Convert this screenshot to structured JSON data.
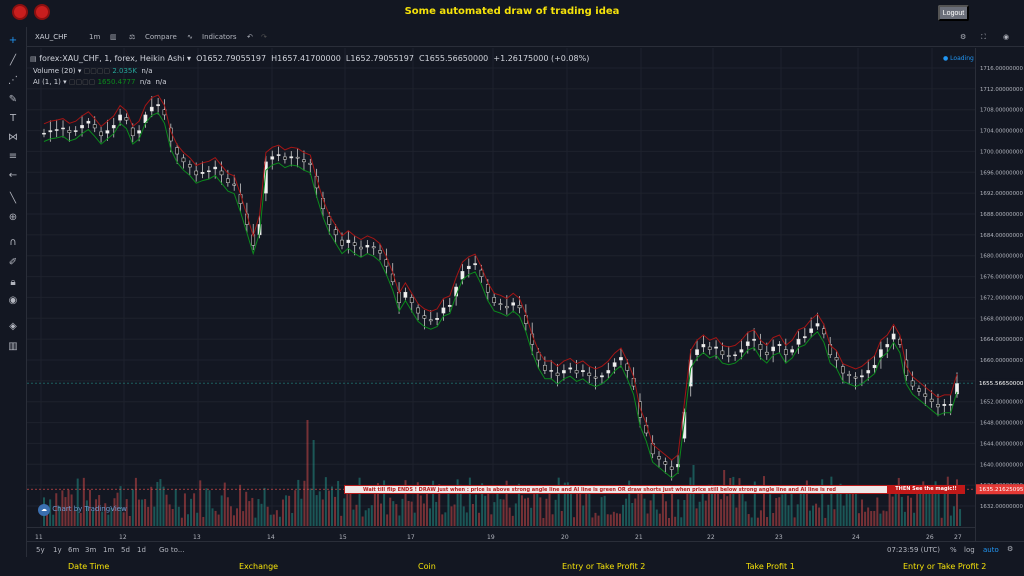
{
  "header": {
    "title": "Some automated draw of trading idea",
    "logout_label": "Logout"
  },
  "toolbar": {
    "symbol": "XAU_CHF",
    "interval": "1m",
    "compare_label": "Compare",
    "indicators_label": "Indicators"
  },
  "legend": {
    "main_prefix": "forex:XAU_CHF, 1, forex, Heikin Ashi",
    "open": "O1652.79055197",
    "high": "H1657.41700000",
    "low": "L1652.79055197",
    "close": "C1655.56650000",
    "change": "+1.26175000 (+0.08%)",
    "volume_label": "Volume (20)",
    "volume_value": "2.035K",
    "volume_na": "n/a",
    "ai_label": "AI (1, 1)",
    "ai_value": "1650.4777",
    "ai_na1": "n/a",
    "ai_na2": "n/a",
    "loading": "Loading"
  },
  "price_axis": {
    "labels": [
      "1716.00000000",
      "1712.00000000",
      "1708.00000000",
      "1704.00000000",
      "1700.00000000",
      "1696.00000000",
      "1692.00000000",
      "1688.00000000",
      "1684.00000000",
      "1680.00000000",
      "1676.00000000",
      "1672.00000000",
      "1668.00000000",
      "1664.00000000",
      "1660.00000000",
      "1656.00000000",
      "1652.00000000",
      "1648.00000000",
      "1644.00000000",
      "1640.00000000",
      "1636.00000000",
      "1632.00000000"
    ],
    "current_price": "1655.56650000",
    "red_price": "1635.21625095"
  },
  "time_axis": {
    "labels": [
      "11",
      "12",
      "13",
      "14",
      "15",
      "17",
      "19",
      "20",
      "21",
      "22",
      "23",
      "24",
      "26",
      "27"
    ]
  },
  "banner": {
    "text": "Wait till flip ENDS  !  DRAW just when : price is above strong angle line and AI line is green         OR        draw shorts just when price still below strong angle line and AI line is red",
    "end": "THEN See the magic!!"
  },
  "watermark": "Chart by TradingView",
  "bottombar": {
    "ranges": [
      "5y",
      "1y",
      "6m",
      "3m",
      "1m",
      "5d",
      "1d"
    ],
    "goto": "Go to...",
    "time": "07:23:59 (UTC)",
    "pct": "%",
    "log": "log",
    "auto": "auto"
  },
  "footer": [
    "Date Time",
    "Exchange",
    "Coin",
    "Entry or Take Profit 2",
    "Take Profit 1",
    "Entry or Take Profit 2"
  ],
  "colors": {
    "title": "#f5e20a",
    "up": "#26a69a",
    "down": "#ef5350",
    "ai_green": "#0b8a1c",
    "ai_red": "#a31515"
  },
  "chart_data": {
    "type": "candlestick",
    "price_range": [
      1632,
      1718
    ],
    "close_series": [
      1703.5,
      1704,
      1704.2,
      1704.5,
      1703.6,
      1704,
      1705,
      1705.8,
      1704.5,
      1703,
      1704,
      1705,
      1707,
      1706,
      1703,
      1704,
      1707,
      1708.5,
      1709,
      1707,
      1702,
      1699.5,
      1698,
      1697,
      1695.5,
      1696,
      1696.3,
      1697,
      1695.5,
      1694,
      1693.5,
      1690,
      1686,
      1682,
      1686,
      1698,
      1699,
      1699.4,
      1698.5,
      1699,
      1698.8,
      1698,
      1697.5,
      1693,
      1689,
      1686,
      1684,
      1682,
      1683,
      1682,
      1681.3,
      1682,
      1681.5,
      1680.5,
      1678,
      1675,
      1671,
      1673,
      1671,
      1669,
      1668,
      1667.5,
      1668,
      1670,
      1670.5,
      1674,
      1677,
      1678,
      1678.5,
      1676,
      1673,
      1671,
      1670.6,
      1670,
      1671,
      1670,
      1667,
      1663,
      1660,
      1658,
      1658,
      1657,
      1658,
      1658.5,
      1657.5,
      1658,
      1657,
      1656.5,
      1657,
      1658,
      1659.5,
      1660.5,
      1658,
      1655,
      1649,
      1646,
      1642,
      1641,
      1640,
      1639,
      1640,
      1650,
      1660,
      1662,
      1663,
      1662,
      1662.5,
      1661,
      1660.7,
      1661,
      1662,
      1663.5,
      1664,
      1662,
      1661,
      1662.5,
      1663,
      1661,
      1662,
      1664,
      1664.5,
      1666,
      1667,
      1665,
      1661,
      1660,
      1657.5,
      1657,
      1656.5,
      1657,
      1658,
      1659,
      1662,
      1663,
      1665,
      1663,
      1657,
      1655,
      1654,
      1653,
      1652,
      1651,
      1651.5,
      1651.5,
      1655.5
    ],
    "volume_spikes": [
      [
        43,
        420
      ],
      [
        44,
        440
      ],
      [
        106,
        465
      ],
      [
        111,
        470
      ],
      [
        112,
        478
      ],
      [
        179,
        478
      ]
    ]
  }
}
